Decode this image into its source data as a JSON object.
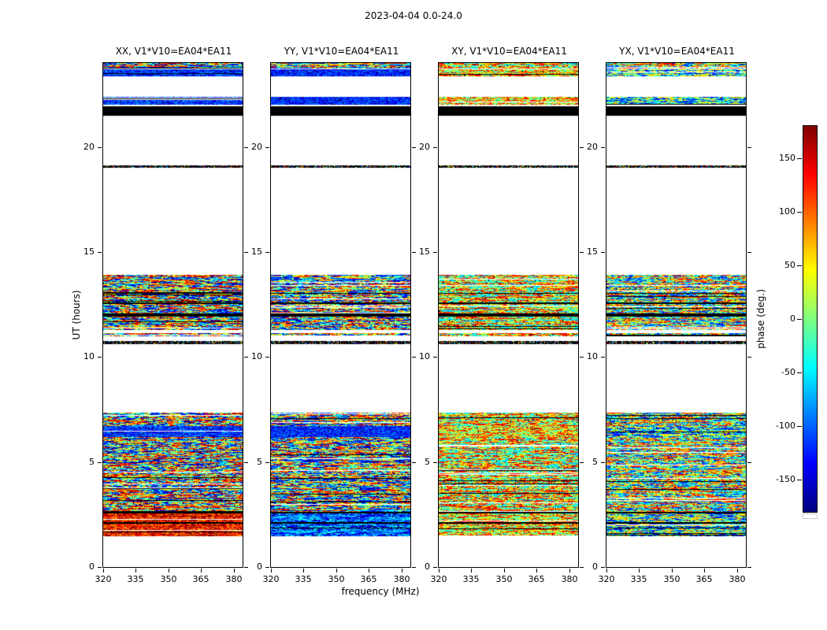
{
  "chart_data": {
    "type": "heatmap",
    "title": "2023-04-04 0.0-24.0",
    "xlabel": "frequency (MHz)",
    "ylabel": "UT (hours)",
    "x_range": [
      320,
      384
    ],
    "y_range": [
      0,
      24
    ],
    "x_ticks": [
      320,
      335,
      350,
      365,
      380
    ],
    "y_ticks": [
      0,
      5,
      10,
      15,
      20
    ],
    "colorbar": {
      "label": "phase (deg.)",
      "min": -180,
      "max": 180,
      "ticks": [
        150,
        100,
        50,
        0,
        -50,
        -100,
        -150
      ],
      "colormap": "jet"
    },
    "panels": [
      {
        "pol": "XX",
        "label": "XX, V1*V10=EA04*EA11",
        "seed": 11,
        "noise": {
          "center": 0,
          "spread": 178
        },
        "warm": {
          "center": 130,
          "spread": 60
        },
        "cool": {
          "center": -118,
          "spread": 48
        }
      },
      {
        "pol": "YY",
        "label": "YY, V1*V10=EA04*EA11",
        "seed": 22,
        "noise": {
          "center": -10,
          "spread": 170
        },
        "warm": {
          "center": -100,
          "spread": 70
        },
        "cool": {
          "center": -122,
          "spread": 42
        }
      },
      {
        "pol": "XY",
        "label": "XY, V1*V10=EA04*EA11",
        "seed": 33,
        "noise": {
          "center": 40,
          "spread": 120
        },
        "warm": {
          "center": 50,
          "spread": 100
        },
        "cool": {
          "center": 55,
          "spread": 95
        }
      },
      {
        "pol": "YX",
        "label": "YX, V1*V10=EA04*EA11",
        "seed": 44,
        "noise": {
          "center": 5,
          "spread": 140
        },
        "warm": {
          "center": -30,
          "spread": 130
        },
        "cool": {
          "center": -40,
          "spread": 120
        }
      }
    ],
    "bands": [
      {
        "t0": 1.45,
        "t1": 2.05,
        "style": "warm"
      },
      {
        "t0": 2.05,
        "t1": 2.12,
        "style": "black"
      },
      {
        "t0": 2.12,
        "t1": 2.56,
        "style": "warm"
      },
      {
        "t0": 2.56,
        "t1": 2.64,
        "style": "black"
      },
      {
        "t0": 2.64,
        "t1": 6.18,
        "style": "noise"
      },
      {
        "t0": 6.18,
        "t1": 6.72,
        "style": "cool"
      },
      {
        "t0": 6.72,
        "t1": 7.35,
        "style": "noise"
      },
      {
        "t0": 10.62,
        "t1": 10.76,
        "style": "dark"
      },
      {
        "t0": 11.0,
        "t1": 11.14,
        "style": "noise"
      },
      {
        "t0": 11.27,
        "t1": 11.93,
        "style": "noise"
      },
      {
        "t0": 11.93,
        "t1": 12.08,
        "style": "black"
      },
      {
        "t0": 12.08,
        "t1": 12.53,
        "style": "noise"
      },
      {
        "t0": 12.53,
        "t1": 12.6,
        "style": "black"
      },
      {
        "t0": 12.6,
        "t1": 13.0,
        "style": "noise"
      },
      {
        "t0": 13.0,
        "t1": 13.06,
        "style": "black"
      },
      {
        "t0": 13.06,
        "t1": 13.9,
        "style": "noise"
      },
      {
        "t0": 19.02,
        "t1": 19.14,
        "style": "dark"
      },
      {
        "t0": 21.5,
        "t1": 21.95,
        "style": "black"
      },
      {
        "t0": 22.0,
        "t1": 22.38,
        "style": "cool"
      },
      {
        "t0": 23.35,
        "t1": 23.7,
        "style": "cool"
      },
      {
        "t0": 23.72,
        "t1": 24.0,
        "style": "noise"
      }
    ]
  }
}
